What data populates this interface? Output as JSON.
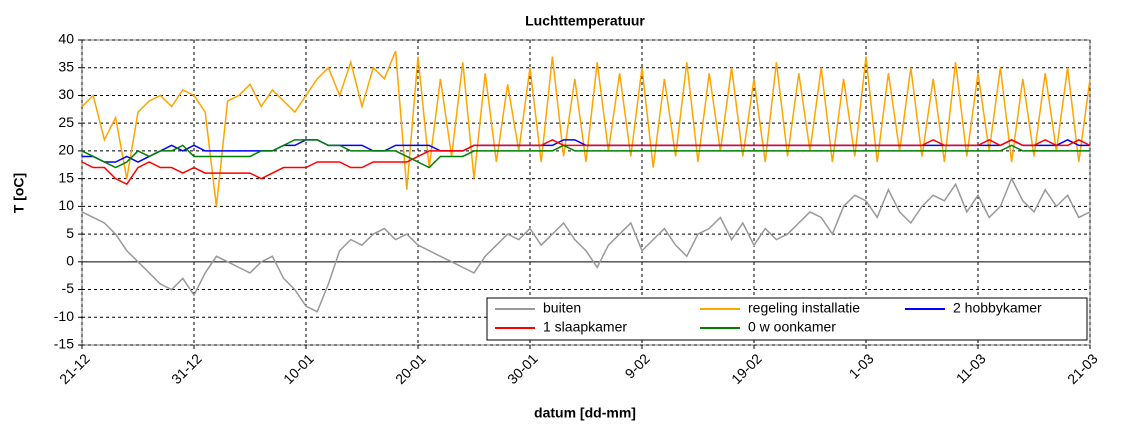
{
  "chart_data": {
    "type": "line",
    "title": "Luchttemperatuur",
    "x_label": "datum [dd-mm]",
    "y_label": "T [oC]",
    "x": [
      0,
      1,
      2,
      3,
      4,
      5,
      6,
      7,
      8,
      9,
      10,
      11,
      12,
      13,
      14,
      15,
      16,
      17,
      18,
      19,
      20,
      21,
      22,
      23,
      24,
      25,
      26,
      27,
      28,
      29,
      30,
      31,
      32,
      33,
      34,
      35,
      36,
      37,
      38,
      39,
      40,
      41,
      42,
      43,
      44,
      45,
      46,
      47,
      48,
      49,
      50,
      51,
      52,
      53,
      54,
      55,
      56,
      57,
      58,
      59,
      60,
      61,
      62,
      63,
      64,
      65,
      66,
      67,
      68,
      69,
      70,
      71,
      72,
      73,
      74,
      75,
      76,
      77,
      78,
      79,
      80,
      81,
      82,
      83,
      84,
      85,
      86,
      87,
      88,
      89,
      90
    ],
    "xlim": [
      0,
      90
    ],
    "xticks": [
      {
        "value": 0,
        "label": "21-12"
      },
      {
        "value": 10,
        "label": "31-12"
      },
      {
        "value": 20,
        "label": "10-01"
      },
      {
        "value": 30,
        "label": "20-01"
      },
      {
        "value": 40,
        "label": "30-01"
      },
      {
        "value": 50,
        "label": "9-02"
      },
      {
        "value": 60,
        "label": "19-02"
      },
      {
        "value": 70,
        "label": "1-03"
      },
      {
        "value": 80,
        "label": "11-03"
      },
      {
        "value": 90,
        "label": "21-03"
      }
    ],
    "ylim": [
      -15,
      40
    ],
    "yticks": [
      -15,
      -10,
      -5,
      0,
      5,
      10,
      15,
      20,
      25,
      30,
      35,
      40
    ],
    "grid": true,
    "legend": "lower right",
    "series": [
      {
        "name": "buiten",
        "color": "#999999",
        "values": [
          9,
          8,
          7,
          5,
          2,
          0,
          -2,
          -4,
          -5,
          -3,
          -6,
          -2,
          1,
          0,
          -1,
          -2,
          0,
          1,
          -3,
          -5,
          -8,
          -9,
          -4,
          2,
          4,
          3,
          5,
          6,
          4,
          5,
          3,
          2,
          1,
          0,
          -1,
          -2,
          1,
          3,
          5,
          4,
          6,
          3,
          5,
          7,
          4,
          2,
          -1,
          3,
          5,
          7,
          2,
          4,
          6,
          3,
          1,
          5,
          6,
          8,
          4,
          7,
          3,
          6,
          4,
          5,
          7,
          9,
          8,
          5,
          10,
          12,
          11,
          8,
          13,
          9,
          7,
          10,
          12,
          11,
          14,
          9,
          12,
          8,
          10,
          15,
          11,
          9,
          13,
          10,
          12,
          8,
          9
        ]
      },
      {
        "name": "regeling installatie",
        "color": "#ffa500",
        "values": [
          28,
          30,
          22,
          26,
          15,
          27,
          29,
          30,
          28,
          31,
          30,
          27,
          10,
          29,
          30,
          32,
          28,
          31,
          29,
          27,
          30,
          33,
          35,
          30,
          36,
          28,
          35,
          33,
          38,
          13,
          37,
          17,
          33,
          19,
          36,
          15,
          34,
          18,
          32,
          20,
          35,
          18,
          37,
          19,
          33,
          18,
          36,
          20,
          34,
          19,
          35,
          17,
          33,
          19,
          36,
          18,
          34,
          20,
          35,
          19,
          33,
          18,
          36,
          19,
          34,
          20,
          35,
          18,
          33,
          19,
          37,
          18,
          34,
          20,
          35,
          19,
          33,
          18,
          36,
          19,
          34,
          20,
          35,
          18,
          33,
          19,
          34,
          20,
          35,
          18,
          33
        ]
      },
      {
        "name": "2 hobbykamer",
        "color": "#0000ff",
        "values": [
          19,
          19,
          18,
          18,
          19,
          18,
          19,
          20,
          21,
          20,
          21,
          20,
          20,
          20,
          20,
          20,
          20,
          20,
          21,
          21,
          22,
          22,
          21,
          21,
          21,
          21,
          20,
          20,
          21,
          21,
          21,
          21,
          20,
          20,
          20,
          21,
          21,
          21,
          21,
          21,
          21,
          21,
          21,
          22,
          22,
          21,
          21,
          21,
          21,
          21,
          21,
          21,
          21,
          21,
          21,
          21,
          21,
          21,
          21,
          21,
          21,
          21,
          21,
          21,
          21,
          21,
          21,
          21,
          21,
          21,
          21,
          21,
          21,
          21,
          21,
          21,
          21,
          21,
          21,
          21,
          21,
          21,
          21,
          22,
          21,
          21,
          21,
          21,
          22,
          21,
          21
        ]
      },
      {
        "name": "1 slaapkamer",
        "color": "#ff0000",
        "values": [
          18,
          17,
          17,
          15,
          14,
          17,
          18,
          17,
          17,
          16,
          17,
          16,
          16,
          16,
          16,
          16,
          15,
          16,
          17,
          17,
          17,
          18,
          18,
          18,
          17,
          17,
          18,
          18,
          18,
          18,
          19,
          20,
          20,
          20,
          20,
          21,
          21,
          21,
          21,
          21,
          21,
          21,
          22,
          21,
          21,
          21,
          21,
          21,
          21,
          21,
          21,
          21,
          21,
          21,
          21,
          21,
          21,
          21,
          21,
          21,
          21,
          21,
          21,
          21,
          21,
          21,
          21,
          21,
          21,
          21,
          21,
          21,
          21,
          21,
          21,
          21,
          22,
          21,
          21,
          21,
          21,
          22,
          21,
          22,
          21,
          21,
          22,
          21,
          21,
          22,
          21
        ]
      },
      {
        "name": "0 w oonkamer",
        "color": "#008000",
        "values": [
          20,
          19,
          18,
          17,
          18,
          20,
          19,
          20,
          20,
          21,
          19,
          19,
          19,
          19,
          19,
          19,
          20,
          20,
          21,
          22,
          22,
          22,
          21,
          21,
          20,
          20,
          20,
          20,
          20,
          19,
          18,
          17,
          19,
          19,
          19,
          20,
          20,
          20,
          20,
          20,
          20,
          20,
          20,
          21,
          20,
          20,
          20,
          20,
          20,
          20,
          20,
          20,
          20,
          20,
          20,
          20,
          20,
          20,
          20,
          20,
          20,
          20,
          20,
          20,
          20,
          20,
          20,
          20,
          20,
          20,
          20,
          20,
          20,
          20,
          20,
          20,
          20,
          20,
          20,
          20,
          20,
          20,
          20,
          21,
          20,
          20,
          20,
          20,
          20,
          20,
          20
        ]
      }
    ]
  }
}
